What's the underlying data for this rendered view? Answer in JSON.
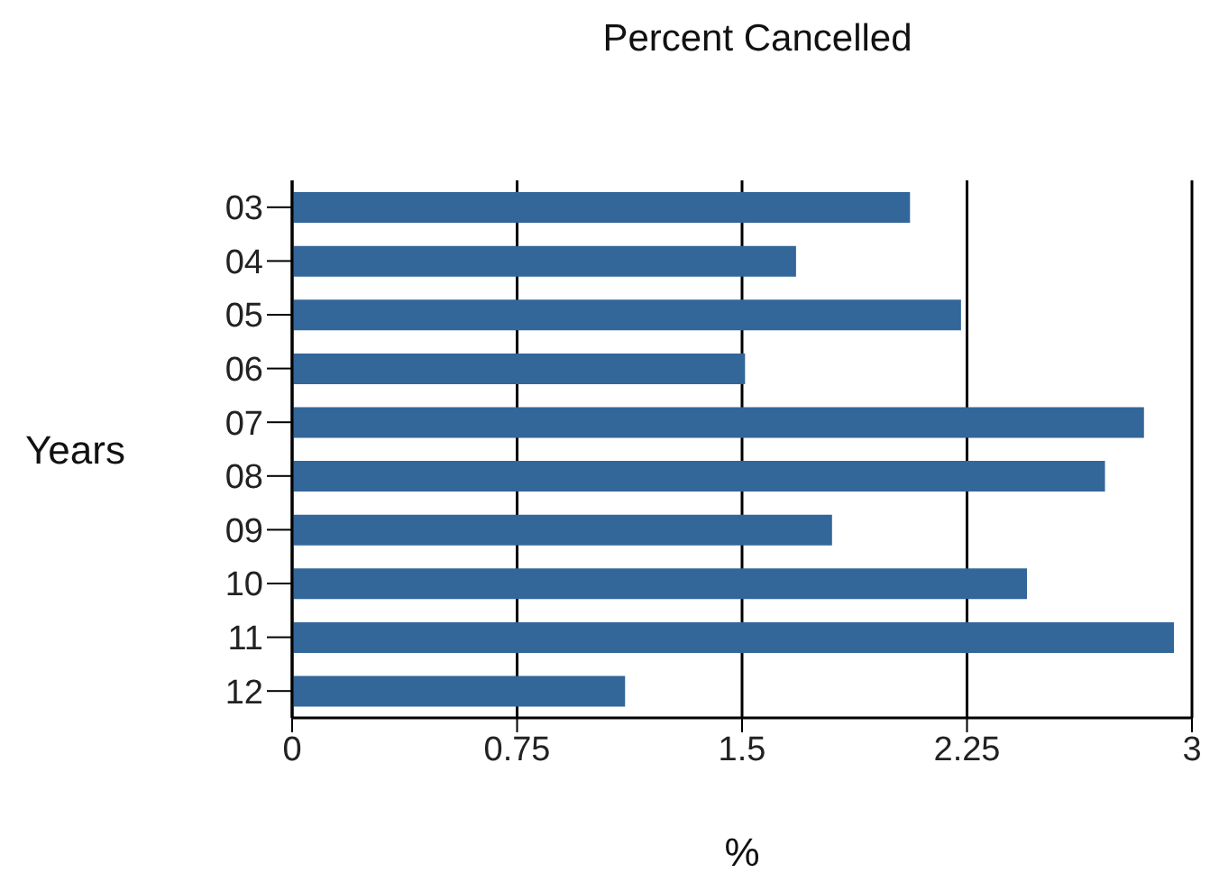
{
  "chart_data": {
    "type": "bar",
    "orientation": "horizontal",
    "title": "Percent Cancelled",
    "xlabel": "%",
    "ylabel": "Years",
    "categories": [
      "03",
      "04",
      "05",
      "06",
      "07",
      "08",
      "09",
      "10",
      "11",
      "12"
    ],
    "values": [
      2.06,
      1.68,
      2.23,
      1.51,
      2.84,
      2.71,
      1.8,
      2.45,
      2.94,
      1.11
    ],
    "color": "#336699",
    "xlim": [
      0,
      3
    ],
    "xticks": [
      0,
      0.75,
      1.5,
      2.25,
      3
    ],
    "grid": "x"
  }
}
